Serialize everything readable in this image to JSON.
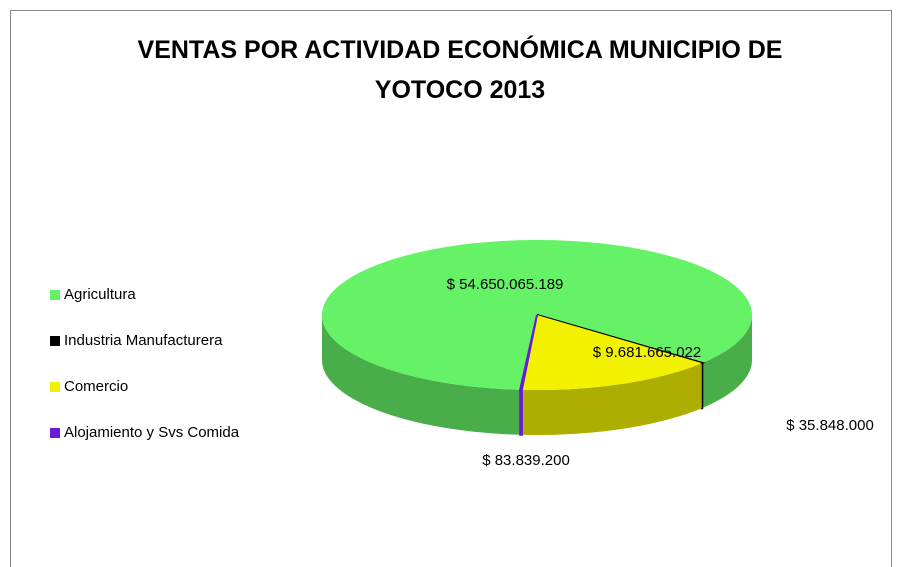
{
  "chart_data": {
    "type": "pie",
    "title": "VENTAS POR ACTIVIDAD ECONÓMICA MUNICIPIO DE YOTOCO 2013",
    "categories": [
      "Agricultura",
      "Industria Manufacturera",
      "Comercio",
      "Alojamiento y Svs Comida"
    ],
    "values": [
      54650065189,
      35848000,
      9681665022,
      83839200
    ],
    "value_labels": [
      "$ 54.650.065.189",
      "$ 35.848.000",
      "$ 9.681.665.022",
      "$ 83.839.200"
    ],
    "colors": [
      "#66f266",
      "#000000",
      "#f2f200",
      "#6a1bd8"
    ],
    "legend": "left"
  }
}
